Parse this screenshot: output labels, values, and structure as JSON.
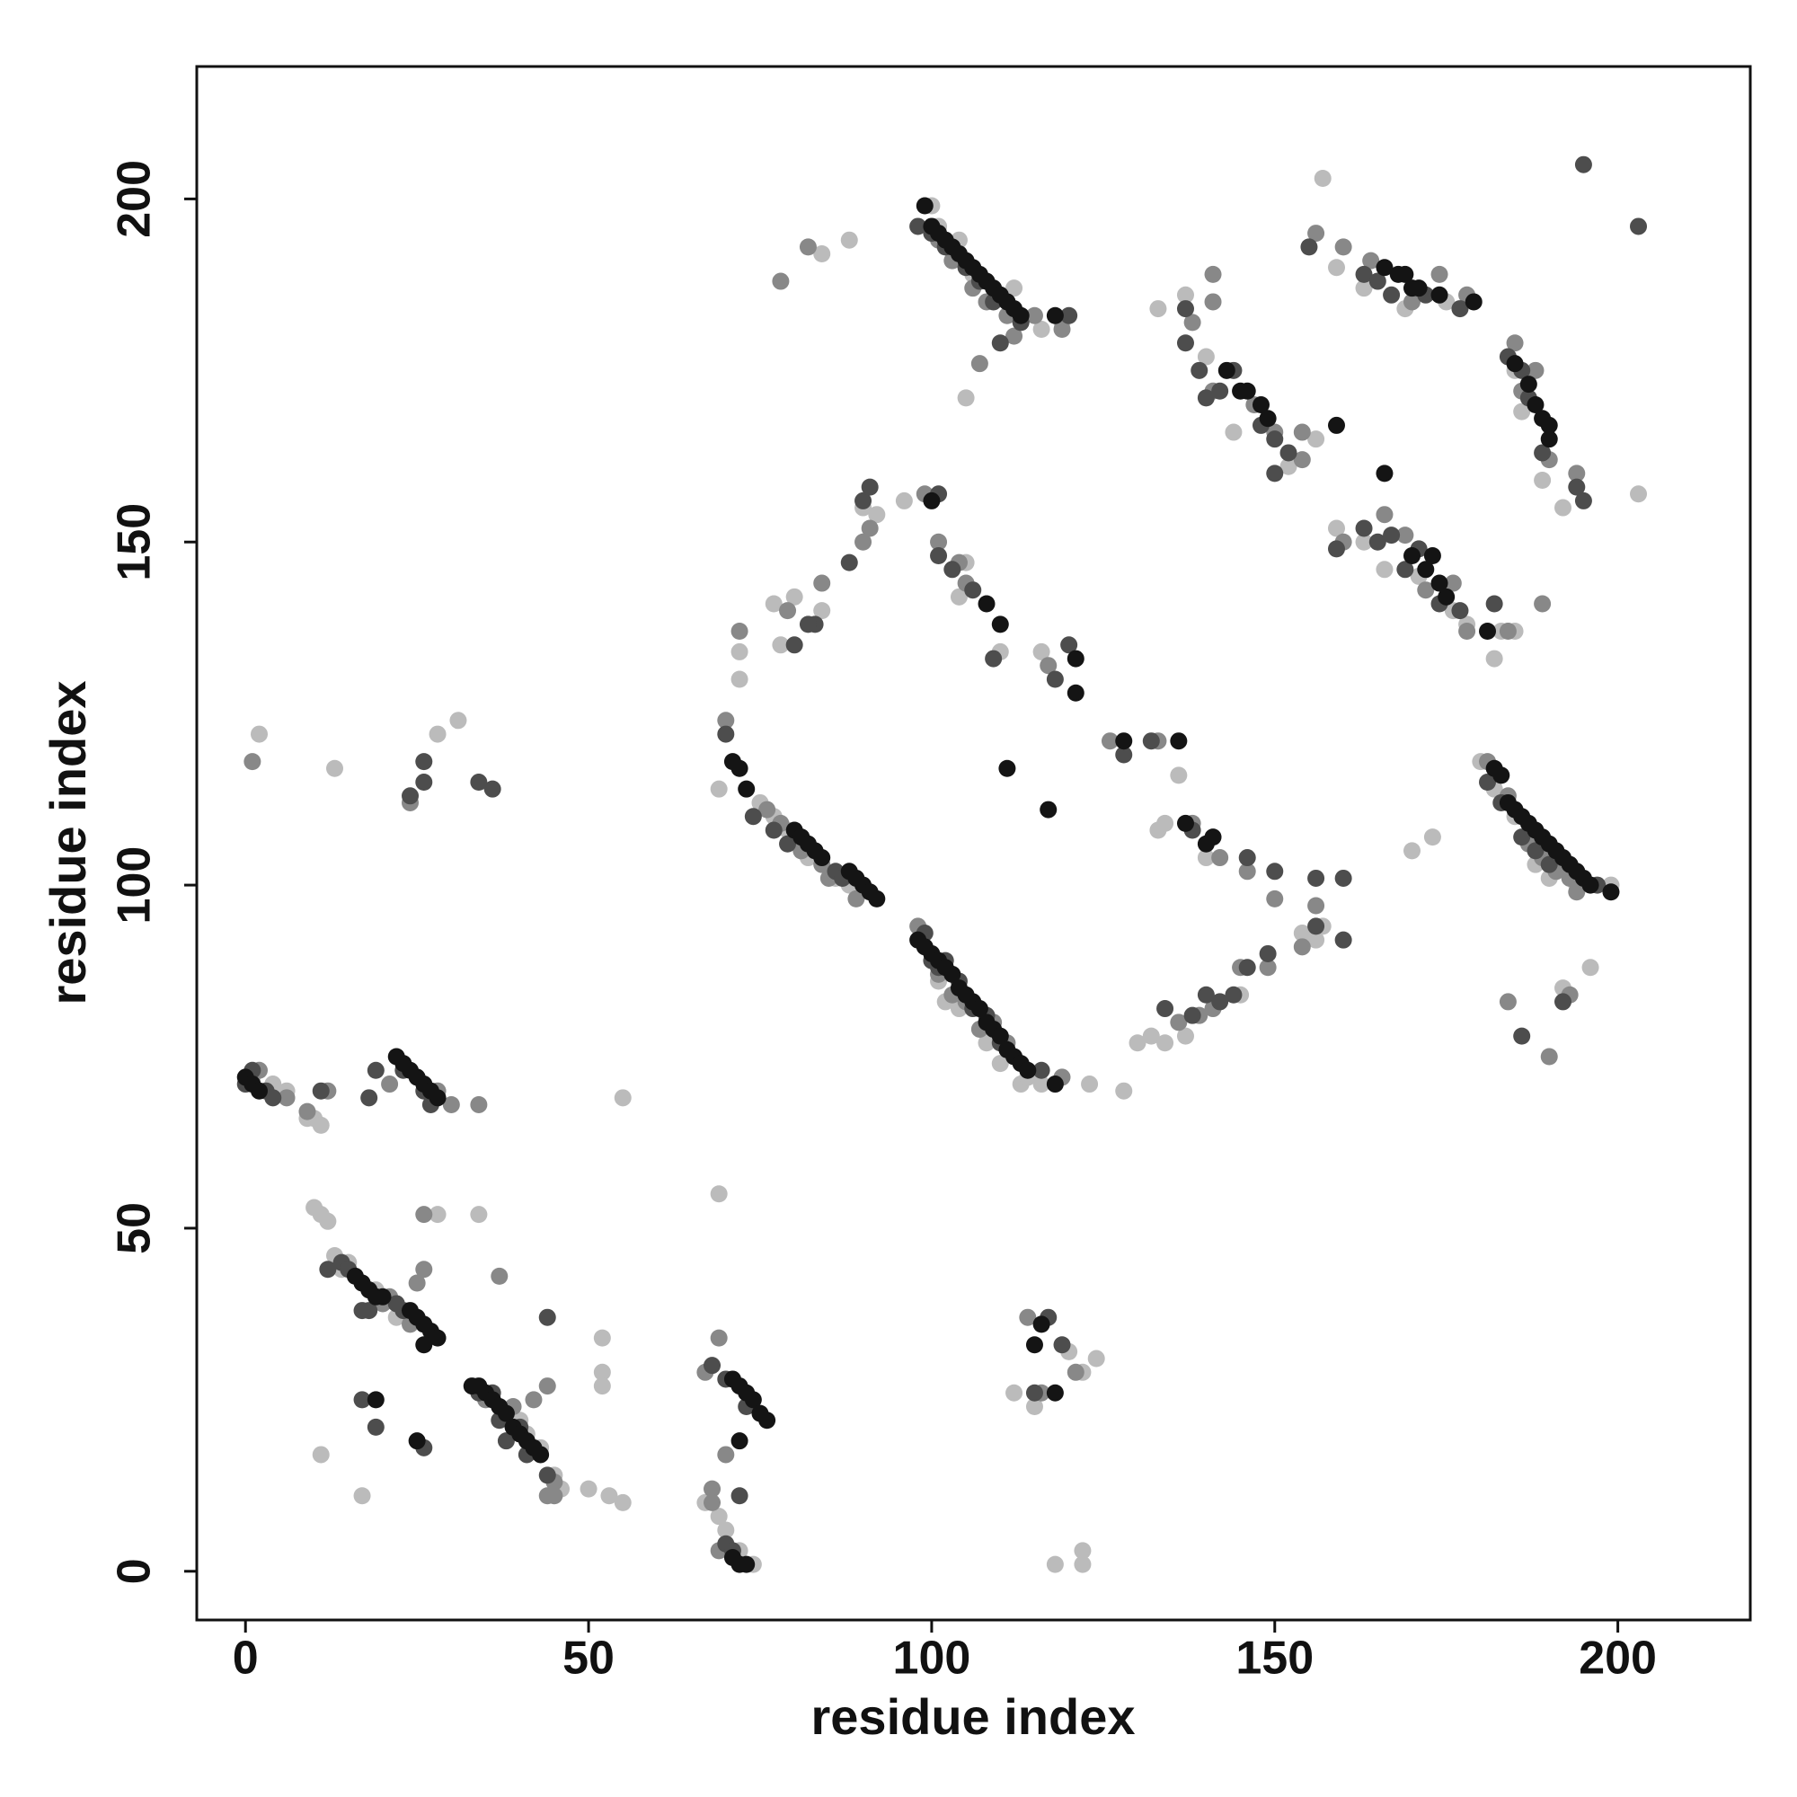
{
  "chart_data": {
    "type": "scatter",
    "x_label": "residue index",
    "y_label": "residue index",
    "xlim": [
      -7.1,
      219.3
    ],
    "ylim": [
      -7.1,
      219.3
    ],
    "xticks": [
      0,
      50,
      100,
      150,
      200
    ],
    "yticks": [
      0,
      50,
      100,
      150,
      200
    ],
    "grid": false,
    "series": [
      {
        "color": "#bbbbbb",
        "x": [
          1,
          4,
          6,
          9,
          10,
          11,
          13,
          2,
          28,
          31,
          10,
          11,
          12,
          28,
          34,
          13,
          14,
          15,
          19,
          22,
          11,
          17,
          40,
          41,
          43,
          45,
          46,
          50,
          52,
          52,
          53,
          55,
          55,
          52,
          69,
          67,
          69,
          70,
          72,
          74,
          100,
          101,
          104,
          106,
          110,
          112,
          116,
          119,
          105,
          84,
          88,
          69,
          75,
          77,
          79,
          82,
          86,
          88,
          101,
          102,
          104,
          108,
          110,
          113,
          180,
          182,
          185,
          188,
          190,
          194,
          199,
          173,
          170,
          133,
          137,
          140,
          144,
          152,
          156,
          157,
          159,
          163,
          169,
          175,
          185,
          186,
          189,
          192,
          203,
          159,
          163,
          166,
          171,
          176,
          178,
          183,
          185,
          182,
          72,
          72,
          77,
          78,
          80,
          84,
          90,
          92,
          96,
          105,
          104,
          110,
          116,
          128,
          130,
          132,
          134,
          136,
          137,
          133,
          134,
          140,
          145,
          156,
          157,
          154,
          196,
          192,
          112,
          115,
          120,
          122,
          124,
          118,
          122,
          122,
          123,
          116,
          114
        ],
        "y": [
          72,
          71,
          70,
          66,
          66,
          65,
          117,
          122,
          122,
          124,
          53,
          52,
          51,
          52,
          52,
          46,
          44,
          45,
          41,
          37,
          17,
          11,
          22,
          20,
          18,
          14,
          12,
          12,
          29,
          34,
          11,
          10,
          69,
          27,
          55,
          10,
          8,
          6,
          3,
          1,
          199,
          196,
          194,
          189,
          186,
          187,
          181,
          182,
          171,
          192,
          194,
          114,
          112,
          110,
          108,
          104,
          101,
          100,
          86,
          83,
          82,
          77,
          74,
          71,
          118,
          114,
          110,
          103,
          101,
          100,
          100,
          107,
          105,
          184,
          186,
          177,
          166,
          161,
          165,
          203,
          190,
          187,
          184,
          185,
          175,
          169,
          159,
          155,
          157,
          152,
          150,
          146,
          145,
          140,
          138,
          137,
          137,
          133,
          130,
          134,
          141,
          135,
          142,
          140,
          155,
          154,
          156,
          147,
          142,
          134,
          134,
          70,
          77,
          78,
          77,
          116,
          78,
          108,
          109,
          104,
          84,
          92,
          94,
          93,
          88,
          85,
          26,
          24,
          32,
          29,
          31,
          1,
          3,
          1,
          71,
          71,
          72
        ]
      },
      {
        "color": "#888888",
        "x": [
          2,
          6,
          9,
          12,
          21,
          28,
          30,
          34,
          1,
          24,
          17,
          20,
          24,
          21,
          26,
          25,
          37,
          26,
          35,
          39,
          42,
          44,
          44,
          45,
          67,
          68,
          70,
          69,
          68,
          69,
          101,
          103,
          106,
          108,
          111,
          115,
          119,
          107,
          112,
          78,
          82,
          70,
          76,
          78,
          81,
          84,
          85,
          89,
          98,
          101,
          103,
          105,
          107,
          109,
          111,
          119,
          181,
          184,
          187,
          189,
          191,
          193,
          194,
          138,
          141,
          141,
          141,
          147,
          150,
          154,
          154,
          156,
          160,
          164,
          170,
          174,
          178,
          185,
          186,
          188,
          190,
          194,
          160,
          166,
          169,
          172,
          176,
          178,
          184,
          189,
          72,
          79,
          84,
          90,
          91,
          99,
          101,
          104,
          105,
          117,
          126,
          133,
          138,
          142,
          146,
          150,
          154,
          156,
          136,
          139,
          141,
          145,
          149,
          184,
          190,
          193,
          114,
          116,
          121,
          45
        ],
        "y": [
          73,
          69,
          67,
          70,
          71,
          70,
          68,
          68,
          118,
          112,
          42,
          39,
          36,
          40,
          44,
          42,
          43,
          52,
          25,
          24,
          25,
          11,
          27,
          13,
          29,
          12,
          17,
          34,
          10,
          3,
          194,
          191,
          187,
          185,
          183,
          183,
          181,
          176,
          180,
          188,
          193,
          124,
          111,
          109,
          105,
          103,
          101,
          98,
          94,
          87,
          84,
          83,
          79,
          80,
          77,
          72,
          118,
          113,
          106,
          104,
          102,
          101,
          99,
          182,
          189,
          185,
          172,
          170,
          166,
          166,
          162,
          195,
          193,
          191,
          185,
          189,
          186,
          179,
          172,
          175,
          162,
          160,
          150,
          154,
          151,
          143,
          144,
          137,
          137,
          141,
          137,
          140,
          144,
          150,
          152,
          157,
          150,
          147,
          144,
          132,
          121,
          121,
          109,
          104,
          102,
          98,
          91,
          97,
          80,
          81,
          82,
          88,
          88,
          83,
          75,
          84,
          37,
          26,
          29,
          11
        ]
      },
      {
        "color": "#4d4d4d",
        "x": [
          0,
          1,
          3,
          4,
          24,
          26,
          26,
          34,
          36,
          11,
          18,
          19,
          23,
          26,
          27,
          14,
          15,
          18,
          22,
          23,
          12,
          17,
          34,
          36,
          37,
          38,
          40,
          41,
          44,
          68,
          70,
          73,
          72,
          70,
          71,
          98,
          100,
          102,
          105,
          107,
          109,
          110,
          113,
          120,
          70,
          74,
          77,
          79,
          86,
          87,
          99,
          100,
          101,
          102,
          104,
          106,
          108,
          110,
          116,
          181,
          183,
          186,
          188,
          190,
          197,
          137,
          137,
          139,
          140,
          142,
          144,
          148,
          150,
          152,
          150,
          155,
          163,
          165,
          167,
          172,
          177,
          184,
          186,
          187,
          189,
          194,
          195,
          195,
          203,
          159,
          163,
          165,
          167,
          169,
          171,
          174,
          177,
          182,
          90,
          91,
          83,
          80,
          82,
          88,
          101,
          101,
          103,
          106,
          109,
          118,
          120,
          128,
          132,
          138,
          146,
          150,
          156,
          156,
          160,
          160,
          134,
          138,
          140,
          142,
          144,
          146,
          149,
          186,
          192,
          115,
          117,
          119,
          44,
          26,
          19,
          17
        ],
        "y": [
          71,
          73,
          70,
          69,
          113,
          115,
          118,
          115,
          114,
          70,
          69,
          73,
          73,
          70,
          68,
          45,
          44,
          38,
          39,
          38,
          44,
          25,
          26,
          26,
          22,
          19,
          21,
          17,
          14,
          30,
          28,
          24,
          11,
          4,
          3,
          196,
          195,
          193,
          190,
          188,
          185,
          179,
          182,
          183,
          122,
          110,
          108,
          106,
          102,
          101,
          93,
          89,
          88,
          89,
          86,
          82,
          81,
          77,
          73,
          115,
          112,
          107,
          105,
          103,
          100,
          184,
          179,
          175,
          171,
          172,
          175,
          167,
          165,
          163,
          160,
          193,
          189,
          188,
          186,
          186,
          184,
          177,
          175,
          171,
          163,
          158,
          156,
          205,
          196,
          149,
          152,
          150,
          151,
          146,
          149,
          141,
          140,
          141,
          156,
          158,
          138,
          135,
          138,
          147,
          157,
          148,
          146,
          143,
          133,
          130,
          135,
          119,
          121,
          108,
          104,
          102,
          101,
          94,
          101,
          92,
          82,
          81,
          84,
          83,
          84,
          88,
          90,
          78,
          83,
          26,
          37,
          33,
          37,
          18,
          21,
          38
        ]
      },
      {
        "color": "#141414",
        "x": [
          0,
          1,
          2,
          22,
          23,
          24,
          25,
          26,
          27,
          28,
          16,
          17,
          18,
          19,
          20,
          24,
          25,
          26,
          27,
          28,
          26,
          33,
          34,
          35,
          36,
          37,
          38,
          39,
          40,
          41,
          42,
          43,
          19,
          25,
          71,
          72,
          73,
          74,
          75,
          76,
          72,
          71,
          72,
          73,
          99,
          100,
          101,
          102,
          103,
          104,
          105,
          106,
          107,
          108,
          109,
          110,
          111,
          112,
          113,
          118,
          71,
          72,
          73,
          80,
          81,
          82,
          83,
          84,
          88,
          89,
          90,
          91,
          92,
          111,
          117,
          98,
          99,
          100,
          101,
          102,
          103,
          104,
          105,
          106,
          107,
          108,
          109,
          110,
          111,
          112,
          113,
          114,
          118,
          182,
          183,
          184,
          185,
          186,
          187,
          188,
          189,
          190,
          191,
          192,
          193,
          194,
          195,
          196,
          199,
          141,
          140,
          137,
          143,
          145,
          146,
          148,
          149,
          159,
          166,
          168,
          169,
          170,
          171,
          174,
          179,
          185,
          187,
          188,
          189,
          190,
          190,
          166,
          170,
          172,
          173,
          174,
          175,
          181,
          116,
          115,
          118,
          100,
          110,
          108,
          121,
          121,
          128,
          136
        ],
        "y": [
          72,
          71,
          70,
          75,
          74,
          73,
          72,
          71,
          70,
          69,
          43,
          42,
          41,
          40,
          40,
          38,
          37,
          36,
          35,
          34,
          33,
          27,
          27,
          26,
          25,
          24,
          23,
          21,
          20,
          19,
          18,
          17,
          25,
          19,
          28,
          27,
          26,
          25,
          23,
          22,
          19,
          2,
          1,
          1,
          199,
          196,
          195,
          194,
          193,
          192,
          191,
          190,
          189,
          188,
          187,
          186,
          185,
          184,
          183,
          183,
          118,
          117,
          114,
          108,
          107,
          106,
          105,
          104,
          102,
          101,
          100,
          99,
          98,
          117,
          111,
          92,
          91,
          90,
          89,
          88,
          87,
          85,
          84,
          83,
          82,
          80,
          79,
          78,
          76,
          75,
          74,
          73,
          71,
          117,
          116,
          112,
          111,
          110,
          109,
          108,
          107,
          106,
          105,
          104,
          103,
          102,
          101,
          100,
          99,
          107,
          106,
          109,
          175,
          172,
          172,
          170,
          168,
          167,
          190,
          189,
          189,
          187,
          187,
          186,
          185,
          176,
          173,
          170,
          168,
          167,
          165,
          160,
          148,
          146,
          148,
          144,
          142,
          137,
          36,
          33,
          26,
          156,
          138,
          141,
          128,
          133,
          121,
          121
        ]
      }
    ]
  }
}
